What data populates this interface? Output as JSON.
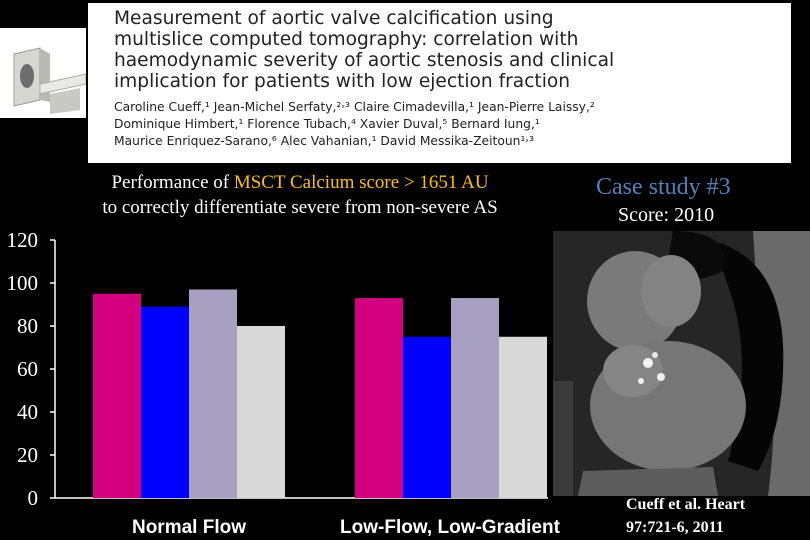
{
  "paper": {
    "title_lines": [
      "Measurement of aortic valve calcification using",
      "multislice computed tomography: correlation with",
      "haemodynamic severity of aortic stenosis and clinical",
      "implication for patients with low ejection fraction"
    ],
    "author_lines": [
      "Caroline Cueff,¹ Jean-Michel Serfaty,²˒³ Claire Cimadevilla,¹ Jean-Pierre Laissy,²",
      "Dominique Himbert,¹ Florence Tubach,⁴ Xavier Duval,⁵ Bernard Iung,¹",
      "Maurice Enriquez-Sarano,⁶ Alec Vahanian,¹ David Messika-Zeitoun¹˒³"
    ]
  },
  "performance": {
    "prefix": "Performance of ",
    "highlight": "MSCT Calcium score > 1651 AU",
    "line2": "to correctly differentiate severe from non-severe AS"
  },
  "case_study": {
    "title": "Case study #3",
    "score": "Score: 2010"
  },
  "citation": {
    "line1": "Cueff et al. Heart",
    "line2": "97:721-6, 2011"
  },
  "colors": {
    "highlight": "#ffc000",
    "case_title": "#4f81bd",
    "background": "#000000"
  },
  "chart_data": {
    "type": "bar",
    "categories": [
      "Normal Flow",
      "Low-Flow, Low-Gradient"
    ],
    "series": [
      {
        "values": [
          95,
          93
        ],
        "color": "#d4007f"
      },
      {
        "values": [
          89,
          75
        ],
        "color": "#0000ff"
      },
      {
        "values": [
          97,
          93
        ],
        "color": "#a8a0c0"
      },
      {
        "values": [
          80,
          75
        ],
        "color": "#d9d9d9"
      }
    ],
    "yticks": [
      0,
      20,
      40,
      60,
      80,
      100,
      120
    ],
    "ylim": [
      0,
      120
    ],
    "grid": false,
    "legend": "none"
  }
}
